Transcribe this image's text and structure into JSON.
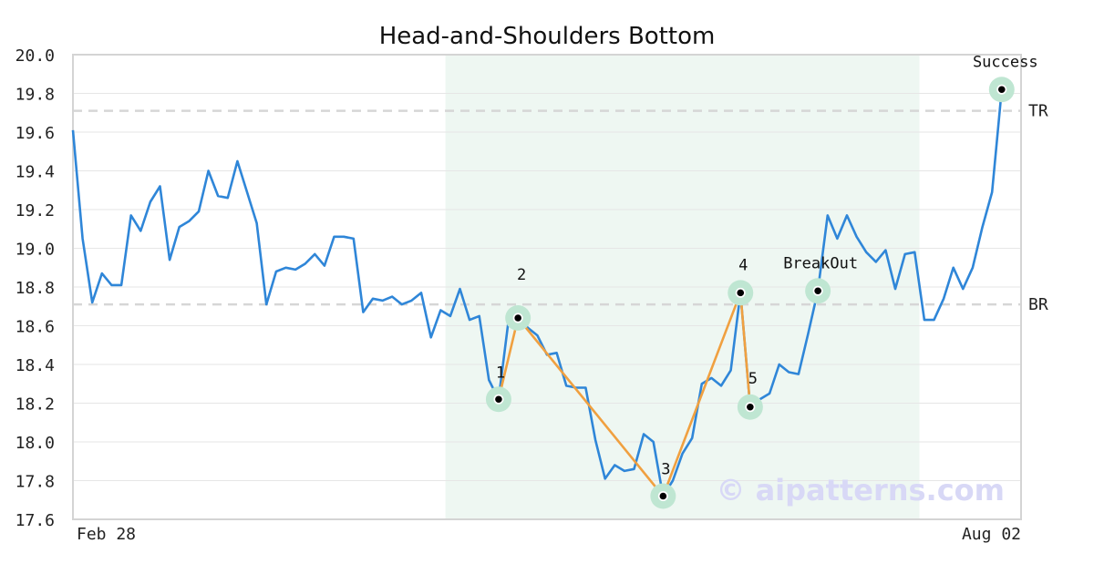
{
  "chart_data": {
    "type": "line",
    "title": "Head-and-Shoulders Bottom",
    "watermark": "© aipatterns.com",
    "x_labels": [
      "Feb 28",
      "Aug 02"
    ],
    "y_ticks": [
      "17.6",
      "17.8",
      "18.0",
      "18.2",
      "18.4",
      "18.6",
      "18.8",
      "19.0",
      "19.2",
      "19.4",
      "19.6",
      "19.8",
      "20.0"
    ],
    "ylim": [
      17.6,
      20.0
    ],
    "grid": true,
    "colors": {
      "price_line": "#2f86d8",
      "pattern_line": "#f0a040",
      "highlight_region": "#eef7f2",
      "marker_halo": "#bfe6d2",
      "level_line": "#d6d6d6",
      "watermark": "#d8d8f6"
    },
    "price": [
      [
        0,
        19.61
      ],
      [
        1,
        19.05
      ],
      [
        2,
        18.72
      ],
      [
        3,
        18.87
      ],
      [
        4,
        18.81
      ],
      [
        5,
        18.81
      ],
      [
        6,
        19.17
      ],
      [
        7,
        19.09
      ],
      [
        8,
        19.24
      ],
      [
        9,
        19.32
      ],
      [
        10,
        18.94
      ],
      [
        11,
        19.11
      ],
      [
        12,
        19.14
      ],
      [
        13,
        19.19
      ],
      [
        14,
        19.4
      ],
      [
        15,
        19.27
      ],
      [
        16,
        19.26
      ],
      [
        17,
        19.45
      ],
      [
        18,
        19.29
      ],
      [
        19,
        19.13
      ],
      [
        20,
        18.71
      ],
      [
        21,
        18.88
      ],
      [
        22,
        18.9
      ],
      [
        23,
        18.89
      ],
      [
        24,
        18.92
      ],
      [
        25,
        18.97
      ],
      [
        26,
        18.91
      ],
      [
        27,
        19.06
      ],
      [
        28,
        19.06
      ],
      [
        29,
        19.05
      ],
      [
        30,
        18.67
      ],
      [
        31,
        18.74
      ],
      [
        32,
        18.73
      ],
      [
        33,
        18.75
      ],
      [
        34,
        18.71
      ],
      [
        35,
        18.73
      ],
      [
        36,
        18.77
      ],
      [
        37,
        18.54
      ],
      [
        38,
        18.68
      ],
      [
        39,
        18.65
      ],
      [
        40,
        18.79
      ],
      [
        41,
        18.63
      ],
      [
        42,
        18.65
      ],
      [
        43,
        18.32
      ],
      [
        44,
        18.22
      ],
      [
        45,
        18.62
      ],
      [
        46,
        18.64
      ],
      [
        47,
        18.59
      ],
      [
        48,
        18.55
      ],
      [
        49,
        18.45
      ],
      [
        50,
        18.46
      ],
      [
        51,
        18.29
      ],
      [
        52,
        18.28
      ],
      [
        53,
        18.28
      ],
      [
        54,
        18.01
      ],
      [
        55,
        17.81
      ],
      [
        56,
        17.88
      ],
      [
        57,
        17.85
      ],
      [
        58,
        17.86
      ],
      [
        59,
        18.04
      ],
      [
        60,
        18.0
      ],
      [
        61,
        17.72
      ],
      [
        62,
        17.8
      ],
      [
        63,
        17.94
      ],
      [
        64,
        18.02
      ],
      [
        65,
        18.3
      ],
      [
        66,
        18.33
      ],
      [
        67,
        18.29
      ],
      [
        68,
        18.37
      ],
      [
        69,
        18.77
      ],
      [
        70,
        18.18
      ],
      [
        71,
        18.22
      ],
      [
        72,
        18.25
      ],
      [
        73,
        18.4
      ],
      [
        74,
        18.36
      ],
      [
        75,
        18.35
      ],
      [
        76,
        18.56
      ],
      [
        77,
        18.78
      ],
      [
        78,
        19.17
      ],
      [
        79,
        19.05
      ],
      [
        80,
        19.17
      ],
      [
        81,
        19.06
      ],
      [
        82,
        18.98
      ],
      [
        83,
        18.93
      ],
      [
        84,
        18.99
      ],
      [
        85,
        18.79
      ],
      [
        86,
        18.97
      ],
      [
        87,
        18.98
      ],
      [
        88,
        18.63
      ],
      [
        89,
        18.63
      ],
      [
        90,
        18.74
      ],
      [
        91,
        18.9
      ],
      [
        92,
        18.79
      ],
      [
        93,
        18.9
      ],
      [
        94,
        19.11
      ],
      [
        95,
        19.29
      ],
      [
        96,
        19.82
      ]
    ],
    "x_domain": [
      0,
      98
    ],
    "highlight_region": [
      38.5,
      87.5
    ],
    "levels": [
      {
        "label": "TR",
        "y": 19.71
      },
      {
        "label": "BR",
        "y": 18.71
      }
    ],
    "pattern_points": [
      {
        "label": "1",
        "x": 44,
        "y": 18.22
      },
      {
        "label": "2",
        "x": 46,
        "y": 18.64
      },
      {
        "label": "3",
        "x": 61,
        "y": 17.72
      },
      {
        "label": "4",
        "x": 69,
        "y": 18.77
      },
      {
        "label": "5",
        "x": 70,
        "y": 18.18
      }
    ],
    "events": [
      {
        "label": "BreakOut",
        "x": 77,
        "y": 18.78
      },
      {
        "label": "Success",
        "x": 96,
        "y": 19.82
      }
    ]
  }
}
